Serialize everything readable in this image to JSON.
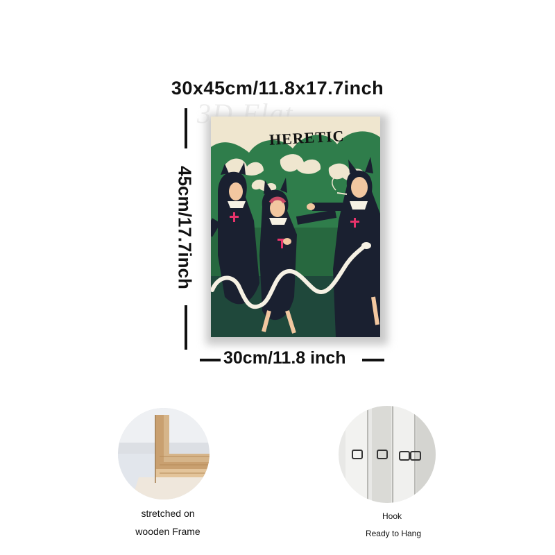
{
  "dimensions": {
    "top_label": "30x45cm/11.8x17.7inch",
    "side_label": "45cm/17.7inch",
    "bottom_label": "30cm/11.8 inch"
  },
  "artwork": {
    "title": "HERETIC",
    "watermark": "3D Flat",
    "colors": {
      "background_cream": "#efe6cf",
      "green": "#2f7d4b",
      "dark_navy": "#1a2030",
      "cross_pink": "#e8336b"
    }
  },
  "details": {
    "frame": {
      "line1": "stretched on",
      "line2": "wooden Frame"
    },
    "hook": {
      "line1": "Hook",
      "line2": "Ready to Hang"
    }
  }
}
